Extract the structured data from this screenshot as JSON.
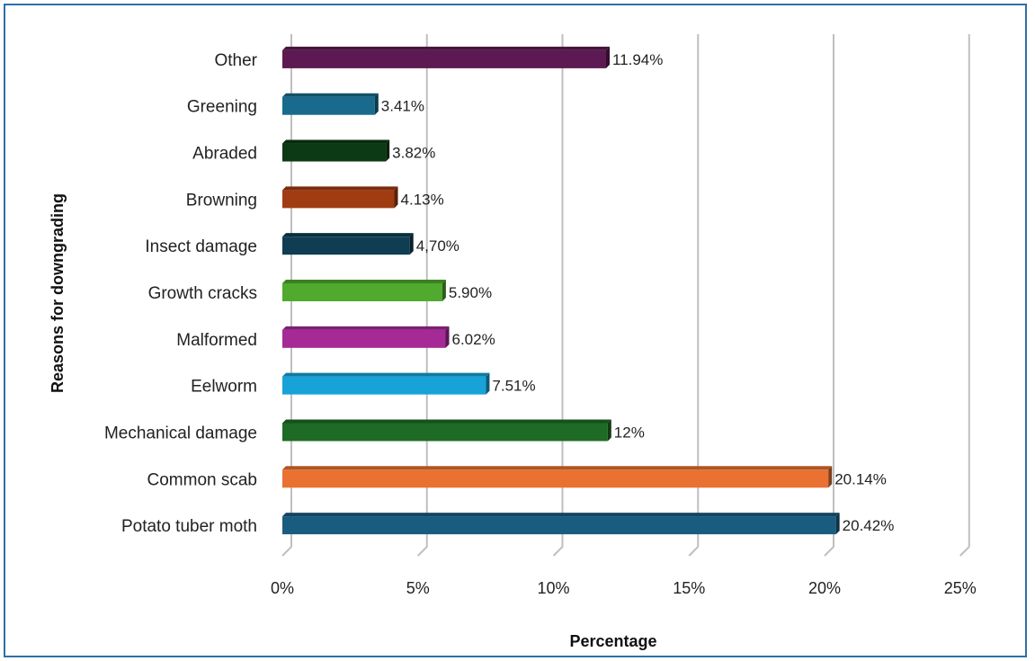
{
  "chart_data": {
    "type": "bar",
    "orientation": "horizontal",
    "title": "",
    "xlabel": "Percentage",
    "ylabel": "Reasons for downgrading",
    "xlim": [
      0,
      25
    ],
    "x_ticks": [
      "0%",
      "5%",
      "10%",
      "15%",
      "20%",
      "25%"
    ],
    "grid": true,
    "legend": "none",
    "categories": [
      "Potato tuber moth",
      "Common scab",
      "Mechanical damage",
      "Eelworm",
      "Malformed",
      "Growth cracks",
      "Insect damage",
      "Browning",
      "Abraded",
      "Greening",
      "Other"
    ],
    "values": [
      20.42,
      20.14,
      12,
      7.51,
      6.02,
      5.9,
      4.7,
      4.13,
      3.82,
      3.41,
      11.94
    ],
    "data_labels": [
      "20.42%",
      "20.14%",
      "12%",
      "7.51%",
      "6.02%",
      "5.90%",
      "4,70%",
      "4.13%",
      "3.82%",
      "3.41%",
      "11.94%"
    ],
    "colors": [
      "#1a5c80",
      "#e97132",
      "#1e6b25",
      "#17a2d8",
      "#a52a96",
      "#4faa2e",
      "#0f3d52",
      "#a13c12",
      "#0c3a14",
      "#186b8c",
      "#5d1a52"
    ]
  }
}
